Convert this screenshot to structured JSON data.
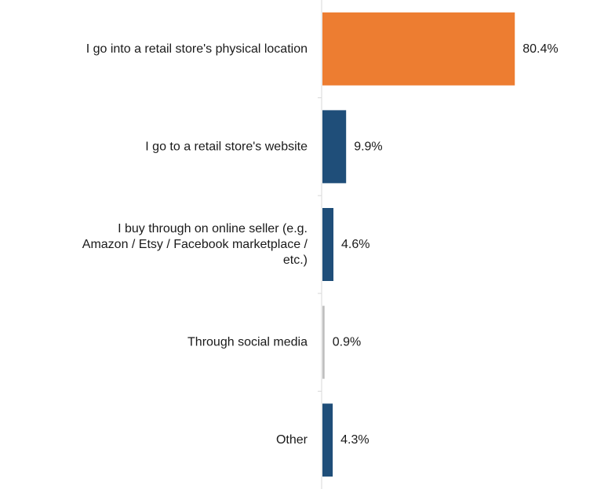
{
  "chart_data": {
    "type": "bar",
    "orientation": "horizontal",
    "title": "",
    "xlabel": "",
    "ylabel": "",
    "xlim": [
      0,
      100
    ],
    "grid": false,
    "legend": "none",
    "categories": [
      [
        "I go into a retail store's physical location"
      ],
      [
        "I go to a retail store's website"
      ],
      [
        "I buy through on online seller (e.g.",
        "Amazon / Etsy / Facebook marketplace /",
        "etc.)"
      ],
      [
        "Through social media"
      ],
      [
        "Other"
      ]
    ],
    "values": [
      80.4,
      9.9,
      4.6,
      0.9,
      4.3
    ],
    "value_labels": [
      "80.4%",
      "9.9%",
      "4.6%",
      "0.9%",
      "4.3%"
    ],
    "colors": [
      "#ED7D31",
      "#1F4E79",
      "#1F4E79",
      "#BFBFBF",
      "#1F4E79"
    ],
    "axis_color": "#D9D9D9"
  }
}
